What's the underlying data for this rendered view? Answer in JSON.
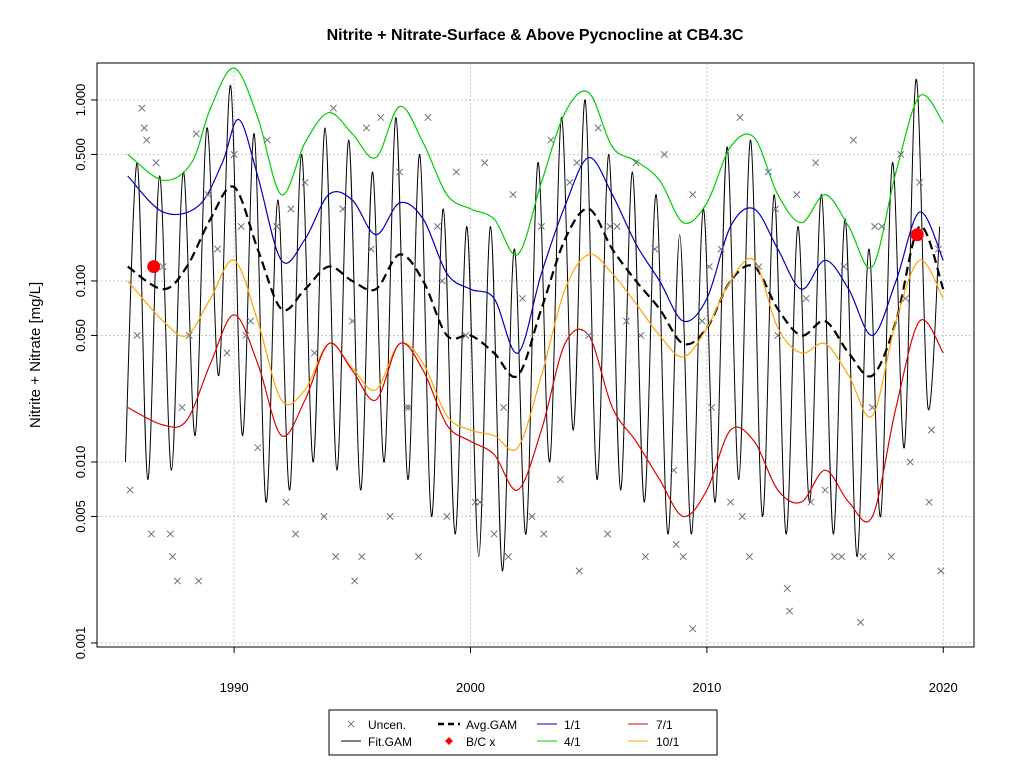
{
  "chart_data": {
    "type": "scatter",
    "title": "Nitrite + Nitrate-Surface & Above Pycnocline at CB4.3C",
    "xlabel": "",
    "ylabel": "Nitrite + Nitrate [mg/L]",
    "y_scale": "log",
    "xlim": [
      1984.2,
      2021.3
    ],
    "ylim": [
      0.00095,
      1.6
    ],
    "x_ticks": [
      1990,
      2000,
      2010,
      2020
    ],
    "y_ticks": [
      "0.001",
      "0.005",
      "0.010",
      "0.050",
      "0.100",
      "0.500",
      "1.000"
    ],
    "grid": true,
    "legend_placement": "bottom-center (outside plot)",
    "legend": {
      "uncen": "Uncen.",
      "fit": "Fit.GAM",
      "avg": "Avg.GAM",
      "bc": "B/C x",
      "d1": "1/1",
      "d4": "4/1",
      "d7": "7/1",
      "d10": "10/1"
    },
    "colors": {
      "uncen": "#6b6f80",
      "fit": "#000000",
      "avg": "#000000",
      "bc": "#ff0000",
      "d1": "#0000bb",
      "d4": "#00cc00",
      "d7": "#dd0000",
      "d10": "#ffa500",
      "grid": "#c8c8c8"
    },
    "series": [
      {
        "name": "4/1",
        "color": "#00cc00",
        "x": [
          1985.5,
          1987,
          1988.2,
          1989,
          1990,
          1991,
          1992,
          1993,
          1994,
          1995,
          1996,
          1997,
          1998,
          1999,
          2000,
          2001,
          2002,
          2003,
          2004,
          2005,
          2006,
          2007,
          2008,
          2009,
          2010,
          2011,
          2012,
          2013,
          2014,
          2015,
          2016,
          2017,
          2018,
          2019,
          2020
        ],
        "y": [
          0.5,
          0.36,
          0.45,
          0.9,
          1.5,
          0.8,
          0.3,
          0.58,
          0.85,
          0.65,
          0.48,
          0.92,
          0.58,
          0.3,
          0.25,
          0.22,
          0.14,
          0.35,
          0.85,
          1.1,
          0.55,
          0.46,
          0.36,
          0.21,
          0.27,
          0.55,
          0.62,
          0.3,
          0.21,
          0.3,
          0.2,
          0.12,
          0.4,
          1.05,
          0.75
        ]
      },
      {
        "name": "1/1",
        "color": "#0000bb",
        "x": [
          1985.5,
          1987,
          1988.5,
          1989.5,
          1990.2,
          1991,
          1992,
          1993,
          1994,
          1995,
          1996,
          1997,
          1998,
          1999,
          2000,
          2001,
          2002,
          2003,
          2004,
          2005,
          2006,
          2007,
          2008,
          2009,
          2010,
          2011,
          2012,
          2013,
          2014,
          2015,
          2016,
          2017,
          2018,
          2019,
          2020
        ],
        "y": [
          0.38,
          0.24,
          0.26,
          0.45,
          0.78,
          0.38,
          0.13,
          0.17,
          0.3,
          0.28,
          0.18,
          0.27,
          0.22,
          0.11,
          0.09,
          0.08,
          0.04,
          0.11,
          0.26,
          0.48,
          0.3,
          0.16,
          0.1,
          0.06,
          0.08,
          0.2,
          0.25,
          0.15,
          0.09,
          0.13,
          0.09,
          0.05,
          0.1,
          0.24,
          0.13
        ]
      },
      {
        "name": "Avg.GAM",
        "color": "#000000",
        "dashed": true,
        "x": [
          1985.5,
          1987,
          1988,
          1989,
          1990,
          1991,
          1992,
          1993,
          1994,
          1995,
          1996,
          1997,
          1998,
          1999,
          2000,
          2001,
          2002,
          2003,
          2004,
          2005,
          2006,
          2007,
          2008,
          2009,
          2010,
          2011,
          2012,
          2013,
          2014,
          2015,
          2016,
          2017,
          2018,
          2019,
          2020
        ],
        "y": [
          0.12,
          0.09,
          0.12,
          0.22,
          0.33,
          0.15,
          0.07,
          0.09,
          0.12,
          0.1,
          0.09,
          0.14,
          0.1,
          0.05,
          0.05,
          0.04,
          0.03,
          0.07,
          0.17,
          0.25,
          0.15,
          0.1,
          0.07,
          0.045,
          0.055,
          0.1,
          0.12,
          0.07,
          0.05,
          0.06,
          0.04,
          0.03,
          0.06,
          0.2,
          0.09
        ]
      },
      {
        "name": "10/1",
        "color": "#ffa500",
        "x": [
          1985.5,
          1987,
          1988,
          1989,
          1990,
          1991,
          1992,
          1993,
          1994,
          1995,
          1996,
          1997,
          1998,
          1999,
          2000,
          2001,
          2002,
          2003,
          2004,
          2005,
          2006,
          2007,
          2008,
          2009,
          2010,
          2011,
          2012,
          2013,
          2014,
          2015,
          2016,
          2017,
          2018,
          2019,
          2020
        ],
        "y": [
          0.1,
          0.06,
          0.05,
          0.08,
          0.13,
          0.06,
          0.022,
          0.025,
          0.045,
          0.033,
          0.025,
          0.045,
          0.035,
          0.018,
          0.015,
          0.014,
          0.012,
          0.03,
          0.09,
          0.14,
          0.11,
          0.075,
          0.05,
          0.038,
          0.055,
          0.1,
          0.13,
          0.055,
          0.04,
          0.045,
          0.03,
          0.018,
          0.06,
          0.13,
          0.08
        ]
      },
      {
        "name": "7/1",
        "color": "#dd0000",
        "x": [
          1985.5,
          1987,
          1988,
          1989,
          1990,
          1991,
          1992,
          1993,
          1994,
          1995,
          1996,
          1997,
          1998,
          1999,
          2000,
          2001,
          2002,
          2003,
          2004,
          2005,
          2006,
          2007,
          2008,
          2009,
          2010,
          2011,
          2012,
          2013,
          2014,
          2015,
          2016,
          2017,
          2018,
          2019,
          2020
        ],
        "y": [
          0.02,
          0.016,
          0.017,
          0.035,
          0.065,
          0.035,
          0.014,
          0.022,
          0.045,
          0.032,
          0.022,
          0.045,
          0.032,
          0.016,
          0.013,
          0.011,
          0.007,
          0.015,
          0.045,
          0.05,
          0.02,
          0.013,
          0.008,
          0.005,
          0.007,
          0.015,
          0.013,
          0.007,
          0.006,
          0.009,
          0.006,
          0.005,
          0.02,
          0.06,
          0.04
        ]
      }
    ],
    "fit_gam": {
      "name": "Fit.GAM",
      "peak_x": [
        1985.9,
        1986.85,
        1987.85,
        1988.85,
        1989.85,
        1990.85,
        1991.85,
        1992.85,
        1993.85,
        1994.85,
        1995.85,
        1996.85,
        1997.85,
        1998.85,
        1999.85,
        2000.85,
        2001.85,
        2002.85,
        2003.85,
        2004.85,
        2005.85,
        2006.85,
        2007.85,
        2008.85,
        2009.85,
        2010.85,
        2011.85,
        2012.85,
        2013.85,
        2014.85,
        2015.85,
        2016.85,
        2017.85,
        2018.85,
        2019.85
      ],
      "peak_y": [
        0.45,
        0.38,
        0.4,
        0.7,
        1.2,
        0.65,
        0.28,
        0.5,
        0.7,
        0.6,
        0.4,
        0.8,
        0.5,
        0.25,
        0.2,
        0.2,
        0.15,
        0.45,
        0.8,
        1.0,
        0.5,
        0.4,
        0.3,
        0.18,
        0.25,
        0.55,
        0.6,
        0.3,
        0.2,
        0.3,
        0.22,
        0.15,
        0.45,
        1.3,
        0.2
      ],
      "trough_y": [
        0.01,
        0.008,
        0.009,
        0.014,
        0.03,
        0.014,
        0.006,
        0.007,
        0.01,
        0.009,
        0.007,
        0.01,
        0.008,
        0.005,
        0.004,
        0.003,
        0.0025,
        0.004,
        0.01,
        0.015,
        0.008,
        0.007,
        0.006,
        0.004,
        0.004,
        0.006,
        0.008,
        0.005,
        0.004,
        0.006,
        0.004,
        0.003,
        0.005,
        0.012,
        0.02
      ]
    },
    "bc_points": {
      "name": "B/C x",
      "x": [
        1986.6,
        2018.9
      ],
      "y": [
        0.12,
        0.18
      ]
    },
    "uncen_points": {
      "name": "Uncen.",
      "x": [
        1985.6,
        1985.9,
        1986.1,
        1986.3,
        1986.5,
        1986.7,
        1987.0,
        1987.4,
        1987.8,
        1988.1,
        1988.5,
        1988.9,
        1989.3,
        1989.7,
        1990.0,
        1990.3,
        1990.7,
        1991.0,
        1991.4,
        1991.8,
        1992.2,
        1992.6,
        1993.0,
        1993.4,
        1993.8,
        1994.2,
        1994.6,
        1995.0,
        1995.4,
        1995.8,
        1996.2,
        1996.6,
        1997.0,
        1997.4,
        1997.8,
        1998.2,
        1998.6,
        1999.0,
        1999.4,
        1999.8,
        2000.2,
        2000.6,
        2001.0,
        2001.4,
        2001.8,
        2002.2,
        2002.6,
        2003.0,
        2003.4,
        2003.8,
        2004.2,
        2004.6,
        2005.0,
        2005.4,
        2005.8,
        2006.2,
        2006.6,
        2007.0,
        2007.4,
        2007.8,
        2008.2,
        2008.6,
        2009.0,
        2009.4,
        2009.8,
        2010.2,
        2010.6,
        2011.0,
        2011.4,
        2011.8,
        2012.2,
        2012.6,
        2013.0,
        2013.4,
        2013.8,
        2014.2,
        2014.6,
        2015.0,
        2015.4,
        2015.8,
        2016.2,
        2016.6,
        2017.0,
        2017.4,
        2017.8,
        2018.2,
        2018.6,
        2019.0,
        2019.4,
        2019.8,
        1986.2,
        1987.3,
        1988.4,
        1990.5,
        1992.4,
        1994.3,
        1995.6,
        1997.3,
        1998.8,
        2000.4,
        2001.6,
        2003.1,
        2004.5,
        2005.9,
        2007.2,
        2008.7,
        2010.1,
        2011.5,
        2012.9,
        2014.4,
        2015.7,
        2017.1,
        2018.4,
        2019.5,
        2019.9,
        2009.4,
        2013.5,
        2016.5,
        1987.6,
        1995.1
      ],
      "y": [
        0.007,
        0.05,
        0.9,
        0.6,
        0.004,
        0.45,
        0.12,
        0.003,
        0.02,
        0.05,
        0.0022,
        0.3,
        0.15,
        0.04,
        0.5,
        0.2,
        0.06,
        0.012,
        0.6,
        0.2,
        0.006,
        0.004,
        0.35,
        0.04,
        0.005,
        0.9,
        0.25,
        0.06,
        0.003,
        0.15,
        0.8,
        0.005,
        0.4,
        0.02,
        0.003,
        0.8,
        0.2,
        0.005,
        0.4,
        0.05,
        0.006,
        0.45,
        0.004,
        0.02,
        0.3,
        0.08,
        0.005,
        0.2,
        0.6,
        0.008,
        0.35,
        0.0025,
        0.05,
        0.7,
        0.004,
        0.2,
        0.06,
        0.45,
        0.003,
        0.15,
        0.5,
        0.009,
        0.003,
        0.3,
        0.06,
        0.02,
        0.15,
        0.006,
        0.8,
        0.003,
        0.12,
        0.4,
        0.05,
        0.002,
        0.3,
        0.08,
        0.45,
        0.007,
        0.003,
        0.12,
        0.6,
        0.003,
        0.02,
        0.2,
        0.003,
        0.5,
        0.01,
        0.35,
        0.006,
        0.15,
        0.7,
        0.004,
        0.65,
        0.05,
        0.25,
        0.003,
        0.7,
        0.02,
        0.1,
        0.006,
        0.003,
        0.004,
        0.45,
        0.2,
        0.05,
        0.0035,
        0.12,
        0.005,
        0.25,
        0.006,
        0.003,
        0.2,
        0.08,
        0.015,
        0.0025,
        0.0012,
        0.0015,
        0.0013,
        0.0022,
        0.0022
      ]
    }
  }
}
